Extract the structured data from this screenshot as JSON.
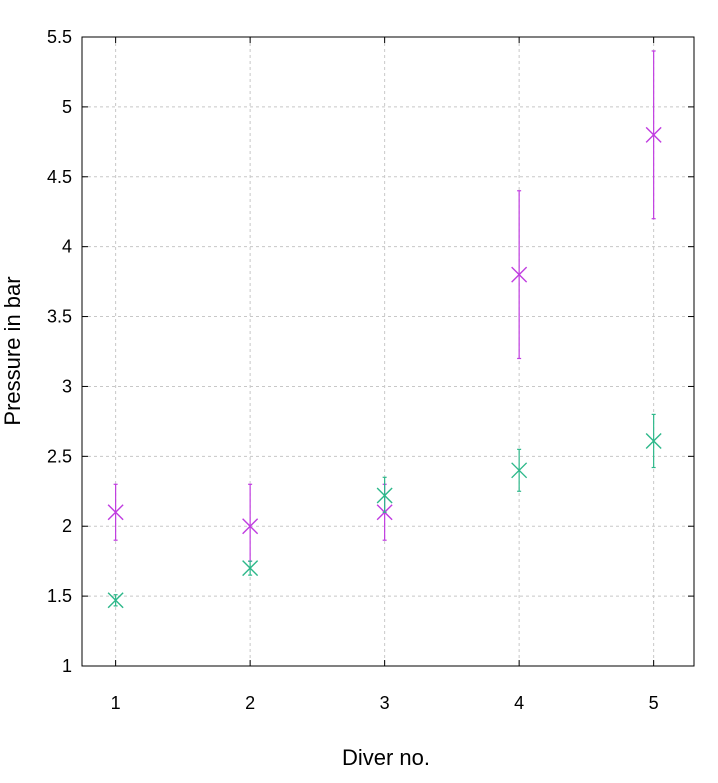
{
  "chart_data": {
    "type": "scatter",
    "title": "",
    "xlabel": "Diver no.",
    "ylabel": "Pressure in bar",
    "xlim": [
      0.75,
      5.3
    ],
    "ylim": [
      1,
      5.5
    ],
    "x_ticks": [
      1,
      2,
      3,
      4,
      5
    ],
    "x_tick_labels": [
      "1",
      "2",
      "3",
      "4",
      "5"
    ],
    "y_ticks": [
      1,
      1.5,
      2,
      2.5,
      3,
      3.5,
      4,
      4.5,
      5,
      5.5
    ],
    "y_tick_labels": [
      "1",
      "1.5",
      "2",
      "2.5",
      "3",
      "3.5",
      "4",
      "4.5",
      "5",
      "5.5"
    ],
    "grid": true,
    "legend": false,
    "marker": "x",
    "series": [
      {
        "color": "#c03ce0",
        "x": [
          1,
          2,
          3,
          4,
          5
        ],
        "y": [
          2.1,
          2.0,
          2.1,
          3.8,
          4.8
        ],
        "error_low": [
          1.9,
          1.75,
          1.9,
          3.2,
          4.2
        ],
        "error_high": [
          2.3,
          2.3,
          2.3,
          4.4,
          5.4
        ]
      },
      {
        "color": "#2db88a",
        "x": [
          1,
          2,
          3,
          4,
          5
        ],
        "y": [
          1.47,
          1.7,
          2.22,
          2.4,
          2.61
        ],
        "error_low": [
          1.43,
          1.65,
          2.1,
          2.25,
          2.42
        ],
        "error_high": [
          1.51,
          1.75,
          2.35,
          2.55,
          2.8
        ]
      }
    ]
  }
}
